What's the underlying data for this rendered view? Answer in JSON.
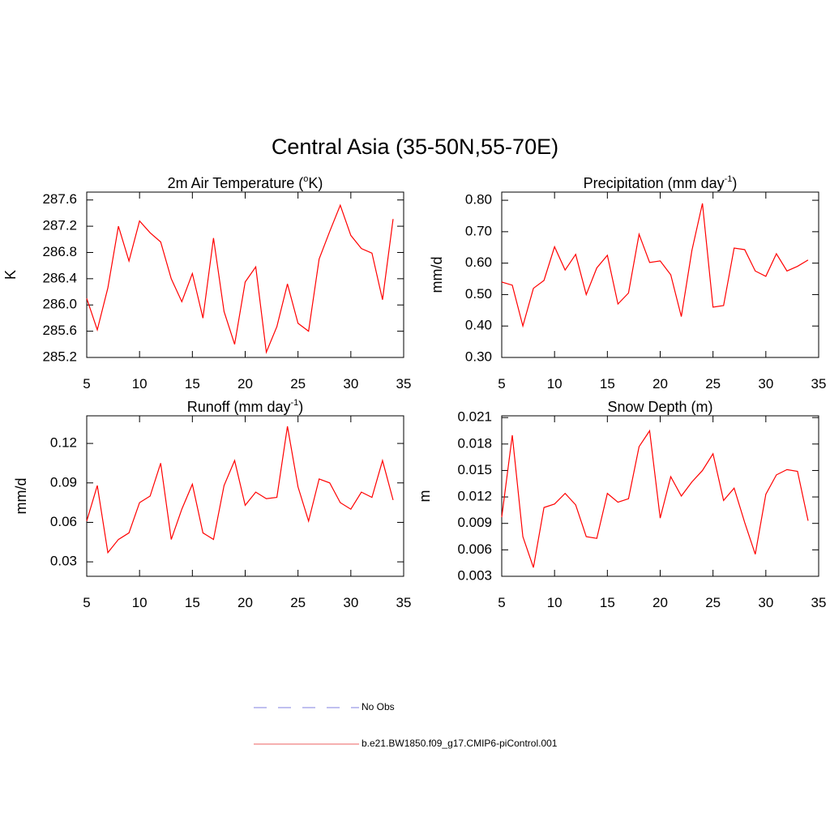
{
  "suptitle": "Central Asia (35-50N,55-70E)",
  "legend": {
    "entries": [
      {
        "label": "No Obs",
        "color": "#9a9ae6",
        "dash": true
      },
      {
        "label": "b.e21.BW1850.f09_g17.CMIP6-piControl.001",
        "color": "#f08080",
        "dash": false
      }
    ]
  },
  "chart_data": [
    {
      "type": "line",
      "title": [
        "2m Air Temperature (",
        "o",
        "K)"
      ],
      "ylabel": "K",
      "x": [
        5,
        6,
        7,
        8,
        9,
        10,
        11,
        12,
        13,
        14,
        15,
        16,
        17,
        18,
        19,
        20,
        21,
        22,
        23,
        24,
        25,
        26,
        27,
        28,
        29,
        30,
        31,
        32,
        33,
        34
      ],
      "xlim": [
        5,
        35
      ],
      "xticks": [
        5,
        10,
        15,
        20,
        25,
        30,
        35
      ],
      "ylim": [
        285.2,
        287.72
      ],
      "yticks": [
        285.2,
        285.6,
        {
          "value": 286.0,
          "label": "286.0"
        },
        286.4,
        286.8,
        287.2,
        287.6
      ],
      "series": [
        {
          "color": "#ff0000",
          "values": [
            286.1,
            285.62,
            286.26,
            287.2,
            286.67,
            287.28,
            287.1,
            286.96,
            286.4,
            286.05,
            286.48,
            285.8,
            287.02,
            285.9,
            285.4,
            286.35,
            286.58,
            285.28,
            285.67,
            286.32,
            285.72,
            285.6,
            286.7,
            287.12,
            287.52,
            287.06,
            286.86,
            286.79,
            286.08,
            287.31
          ]
        }
      ]
    },
    {
      "type": "line",
      "title": [
        "Precipitation (mm day",
        "-1",
        ")"
      ],
      "ylabel": "mm/d",
      "x": [
        5,
        6,
        7,
        8,
        9,
        10,
        11,
        12,
        13,
        14,
        15,
        16,
        17,
        18,
        19,
        20,
        21,
        22,
        23,
        24,
        25,
        26,
        27,
        28,
        29,
        30,
        31,
        32,
        33,
        34
      ],
      "xlim": [
        5,
        35
      ],
      "xticks": [
        5,
        10,
        15,
        20,
        25,
        30,
        35
      ],
      "ylim": [
        0.3,
        0.826
      ],
      "yticks": [
        {
          "value": 0.3,
          "label": "0.30"
        },
        {
          "value": 0.4,
          "label": "0.40"
        },
        {
          "value": 0.5,
          "label": "0.50"
        },
        {
          "value": 0.6,
          "label": "0.60"
        },
        {
          "value": 0.7,
          "label": "0.70"
        },
        {
          "value": 0.8,
          "label": "0.80"
        }
      ],
      "series": [
        {
          "color": "#ff0000",
          "values": [
            0.54,
            0.53,
            0.4,
            0.52,
            0.545,
            0.652,
            0.578,
            0.628,
            0.5,
            0.585,
            0.625,
            0.47,
            0.505,
            0.692,
            0.602,
            0.607,
            0.563,
            0.43,
            0.64,
            0.79,
            0.46,
            0.465,
            0.648,
            0.643,
            0.575,
            0.558,
            0.63,
            0.575,
            0.59,
            0.61
          ]
        }
      ]
    },
    {
      "type": "line",
      "title": [
        "Runoff (mm day",
        "-1",
        ")"
      ],
      "ylabel": "mm/d",
      "x": [
        5,
        6,
        7,
        8,
        9,
        10,
        11,
        12,
        13,
        14,
        15,
        16,
        17,
        18,
        19,
        20,
        21,
        22,
        23,
        24,
        25,
        26,
        27,
        28,
        29,
        30,
        31,
        32,
        33,
        34
      ],
      "xlim": [
        5,
        35
      ],
      "xticks": [
        5,
        10,
        15,
        20,
        25,
        30,
        35
      ],
      "ylim": [
        0.019,
        0.141
      ],
      "yticks": [
        0.03,
        0.06,
        0.09,
        0.12
      ],
      "series": [
        {
          "color": "#ff0000",
          "values": [
            0.061,
            0.088,
            0.037,
            0.047,
            0.052,
            0.075,
            0.08,
            0.105,
            0.047,
            0.07,
            0.089,
            0.052,
            0.047,
            0.088,
            0.107,
            0.073,
            0.083,
            0.078,
            0.079,
            0.133,
            0.087,
            0.061,
            0.093,
            0.09,
            0.075,
            0.07,
            0.083,
            0.079,
            0.107,
            0.077
          ]
        }
      ]
    },
    {
      "type": "line",
      "title": [
        "Snow Depth (m)"
      ],
      "ylabel": "m",
      "x": [
        5,
        6,
        7,
        8,
        9,
        10,
        11,
        12,
        13,
        14,
        15,
        16,
        17,
        18,
        19,
        20,
        21,
        22,
        23,
        24,
        25,
        26,
        27,
        28,
        29,
        30,
        31,
        32,
        33,
        34
      ],
      "xlim": [
        5,
        35
      ],
      "xticks": [
        5,
        10,
        15,
        20,
        25,
        30,
        35
      ],
      "ylim": [
        0.003,
        0.0212
      ],
      "yticks": [
        0.003,
        0.006,
        0.009,
        0.012,
        0.015,
        0.018,
        0.021
      ],
      "series": [
        {
          "color": "#ff0000",
          "values": [
            0.0097,
            0.019,
            0.0075,
            0.004,
            0.0108,
            0.0112,
            0.0124,
            0.0111,
            0.0075,
            0.0073,
            0.0124,
            0.0114,
            0.0118,
            0.0177,
            0.0195,
            0.0096,
            0.0143,
            0.0121,
            0.0137,
            0.015,
            0.0169,
            0.0116,
            0.013,
            0.0091,
            0.0055,
            0.0123,
            0.0145,
            0.0151,
            0.0149,
            0.0093
          ]
        }
      ]
    }
  ]
}
